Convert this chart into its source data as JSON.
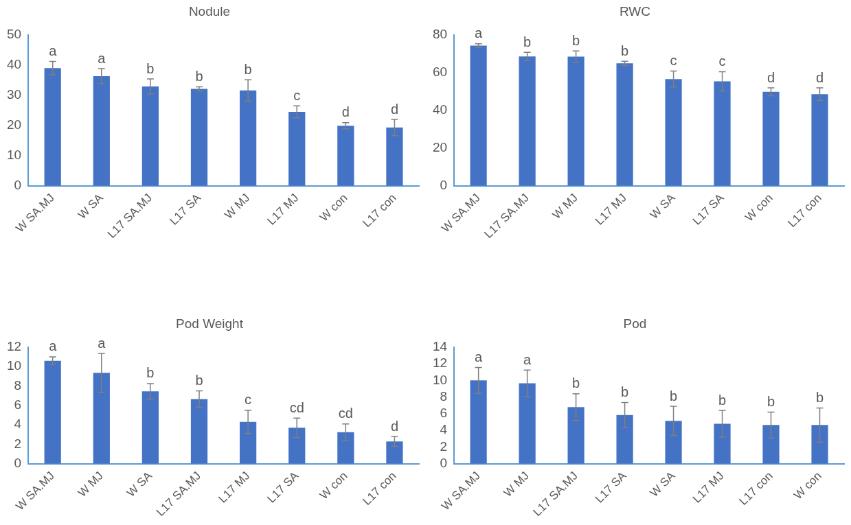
{
  "chart_data": [
    {
      "type": "bar",
      "title": "Nodule",
      "categories": [
        "W SA.MJ",
        "W SA",
        "L17 SA.MJ",
        "L17 SA",
        "W MJ",
        "L17 MJ",
        "W con",
        "L17 con"
      ],
      "values": [
        39,
        36.3,
        32.9,
        32.1,
        31.6,
        24.5,
        19.9,
        19.3
      ],
      "errors": [
        2.2,
        2.5,
        2.5,
        0.7,
        3.5,
        2,
        1,
        2.7
      ],
      "color": "#4472c4",
      "ylim": [
        0,
        50
      ],
      "yticks": [
        0,
        10,
        20,
        30,
        40,
        50
      ],
      "annotations": [
        {
          "text": "a",
          "x": "W SA.MJ",
          "y": 41.2
        },
        {
          "text": "a",
          "x": "W SA",
          "y": 38.8
        },
        {
          "text": "b",
          "x": "L17 SA.MJ",
          "y": 35.4
        },
        {
          "text": "b",
          "x": "L17 SA",
          "y": 32.8
        },
        {
          "text": "b",
          "x": "W MJ",
          "y": 35.1
        },
        {
          "text": "c",
          "x": "L17 MJ",
          "y": 26.5
        },
        {
          "text": "d",
          "x": "W con",
          "y": 20.9
        },
        {
          "text": "d",
          "x": "L17 con",
          "y": 22
        }
      ]
    },
    {
      "type": "bar",
      "title": "RWC",
      "categories": [
        "W SA.MJ",
        "L17 SA.MJ",
        "W MJ",
        "L17 MJ",
        "W SA",
        "L17 SA",
        "W con",
        "L17 con"
      ],
      "values": [
        74.3,
        68.6,
        68.5,
        64.9,
        56.6,
        55.4,
        49.8,
        48.6
      ],
      "errors": [
        1,
        2.1,
        3,
        1.1,
        4.2,
        5.1,
        2.1,
        3.3
      ],
      "color": "#4472c4",
      "ylim": [
        0,
        80
      ],
      "yticks": [
        0,
        20,
        40,
        60,
        80
      ],
      "annotations": [
        {
          "text": "a",
          "x": "W SA.MJ",
          "y": 75.3
        },
        {
          "text": "b",
          "x": "L17 SA.MJ",
          "y": 70.7
        },
        {
          "text": "b",
          "x": "W MJ",
          "y": 71.5
        },
        {
          "text": "b",
          "x": "L17 MJ",
          "y": 66
        },
        {
          "text": "c",
          "x": "W SA",
          "y": 60.8
        },
        {
          "text": "c",
          "x": "L17 SA",
          "y": 60.5
        },
        {
          "text": "d",
          "x": "W con",
          "y": 51.9
        },
        {
          "text": "d",
          "x": "L17 con",
          "y": 51.9
        }
      ]
    },
    {
      "type": "bar",
      "title": "Pod Weight",
      "categories": [
        "W SA.MJ",
        "W MJ",
        "W SA",
        "L17 SA.MJ",
        "L17 MJ",
        "L17 SA",
        "W con",
        "L17 con"
      ],
      "values": [
        10.6,
        9.35,
        7.45,
        6.65,
        4.3,
        3.7,
        3.25,
        2.3
      ],
      "errors": [
        0.4,
        2,
        0.8,
        0.85,
        1.2,
        1,
        0.85,
        0.5
      ],
      "color": "#4472c4",
      "ylim": [
        0,
        12
      ],
      "yticks": [
        0,
        2,
        4,
        6,
        8,
        10,
        12
      ],
      "annotations": [
        {
          "text": "a",
          "x": "W SA.MJ",
          "y": 11
        },
        {
          "text": "a",
          "x": "W MJ",
          "y": 11.35
        },
        {
          "text": "b",
          "x": "W SA",
          "y": 8.25
        },
        {
          "text": "b",
          "x": "L17 SA.MJ",
          "y": 7.5
        },
        {
          "text": "c",
          "x": "L17 MJ",
          "y": 5.5
        },
        {
          "text": "cd",
          "x": "L17 SA",
          "y": 4.7
        },
        {
          "text": "cd",
          "x": "W con",
          "y": 4.1
        },
        {
          "text": "d",
          "x": "L17 con",
          "y": 2.8
        }
      ]
    },
    {
      "type": "bar",
      "title": "Pod",
      "categories": [
        "W SA.MJ",
        "W MJ",
        "L17 SA.MJ",
        "L17 SA",
        "W SA",
        "L17 MJ",
        "L17 con",
        "W con"
      ],
      "values": [
        10,
        9.65,
        6.8,
        5.85,
        5.15,
        4.8,
        4.65,
        4.65
      ],
      "errors": [
        1.55,
        1.6,
        1.6,
        1.5,
        1.75,
        1.6,
        1.55,
        2.05
      ],
      "color": "#4472c4",
      "ylim": [
        0,
        14
      ],
      "yticks": [
        0,
        2,
        4,
        6,
        8,
        10,
        12,
        14
      ],
      "annotations": [
        {
          "text": "a",
          "x": "W SA.MJ",
          "y": 11.55
        },
        {
          "text": "a",
          "x": "W MJ",
          "y": 11.25
        },
        {
          "text": "b",
          "x": "L17 SA.MJ",
          "y": 8.4
        },
        {
          "text": "b",
          "x": "L17 SA",
          "y": 7.35
        },
        {
          "text": "b",
          "x": "W SA",
          "y": 6.9
        },
        {
          "text": "b",
          "x": "L17 MJ",
          "y": 6.4
        },
        {
          "text": "b",
          "x": "L17 con",
          "y": 6.2
        },
        {
          "text": "b",
          "x": "W con",
          "y": 6.7
        }
      ]
    }
  ]
}
